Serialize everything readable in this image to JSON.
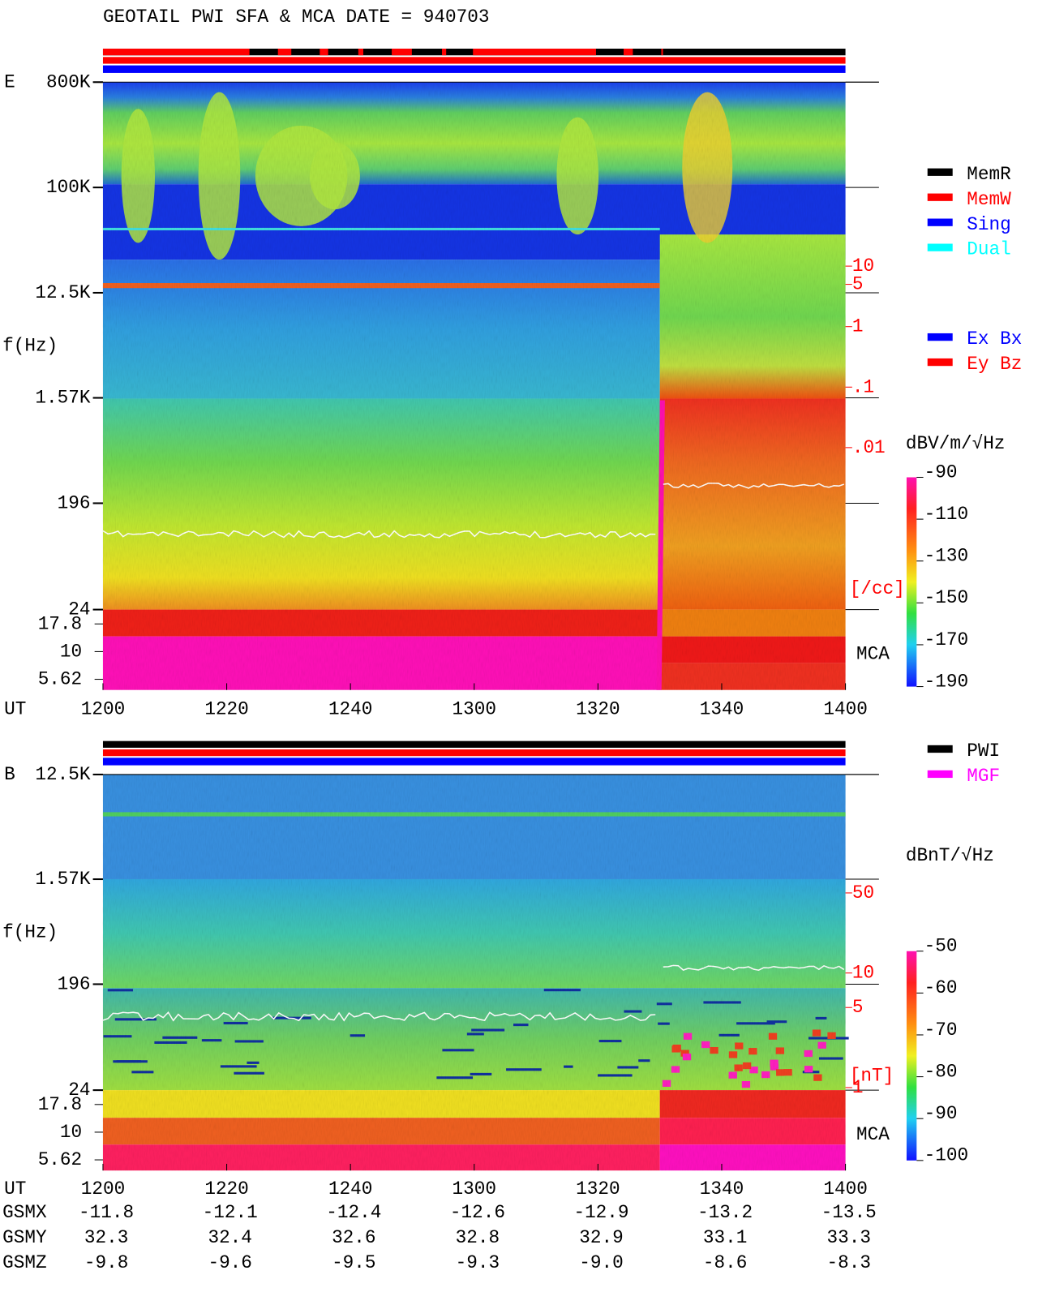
{
  "header": {
    "title": "GEOTAIL  PWI SFA & MCA   DATE = 940703"
  },
  "chart_data": [
    {
      "type": "spectrogram",
      "panel_label": "E",
      "x_label": "UT",
      "y_label": "f(Hz)",
      "yscale": "log",
      "xlim": [
        0,
        120
      ],
      "xticks": [
        {
          "value": 0,
          "label": "1200"
        },
        {
          "value": 20,
          "label": "1220"
        },
        {
          "value": 40,
          "label": "1240"
        },
        {
          "value": 60,
          "label": "1300"
        },
        {
          "value": 80,
          "label": "1320"
        },
        {
          "value": 100,
          "label": "1340"
        },
        {
          "value": 120,
          "label": "1400"
        }
      ],
      "ylim": [
        24,
        800000
      ],
      "yticks": [
        {
          "value": 800000,
          "label": "800K"
        },
        {
          "value": 100000,
          "label": "100K"
        },
        {
          "value": 12500,
          "label": "12.5K"
        },
        {
          "value": 1570,
          "label": "1.57K"
        },
        196,
        24
      ],
      "mca_label": "MCA",
      "mca_ylim": [
        4.5,
        24
      ],
      "mca_yticks": [
        17.8,
        10,
        5.62
      ],
      "y2scale": "log",
      "y2lim": [
        2.1e-05,
        11000
      ],
      "y2ticks": [
        10,
        5,
        1,
        {
          "value": 0.1,
          "label": ".1"
        },
        {
          "value": 0.01,
          "label": ".01"
        }
      ],
      "y2_label": "[/cc]",
      "y2_color": "#ff0000",
      "colorbar": {
        "label": "dBV/m/√Hz",
        "lim": [
          -190,
          -90
        ],
        "ticks": [
          -90,
          -110,
          -130,
          -150,
          -170,
          -190
        ]
      },
      "status_legend": [
        {
          "name": "MemR",
          "color": "#000000"
        },
        {
          "name": "MemW",
          "color": "#ff0000"
        },
        {
          "name": "Sing",
          "color": "#0000ff"
        },
        {
          "name": "Dual",
          "color": "#00ffff"
        }
      ],
      "component_legend": [
        {
          "name": "Ex Bx",
          "color": "#0000ff"
        },
        {
          "name": "Ey Bz",
          "color": "#ff0000"
        }
      ]
    },
    {
      "type": "spectrogram",
      "panel_label": "B",
      "x_label": "UT",
      "y_label": "f(Hz)",
      "yscale": "log",
      "xlim": [
        0,
        120
      ],
      "xticks": [
        {
          "value": 0,
          "label": "1200"
        },
        {
          "value": 20,
          "label": "1220"
        },
        {
          "value": 40,
          "label": "1240"
        },
        {
          "value": 60,
          "label": "1300"
        },
        {
          "value": 80,
          "label": "1320"
        },
        {
          "value": 100,
          "label": "1340"
        },
        {
          "value": 120,
          "label": "1400"
        }
      ],
      "ylim": [
        24,
        12500
      ],
      "yticks": [
        {
          "value": 12500,
          "label": "12.5K"
        },
        {
          "value": 1570,
          "label": "1.57K"
        },
        196,
        24
      ],
      "mca_label": "MCA",
      "mca_ylim": [
        4.5,
        24
      ],
      "mca_yticks": [
        17.8,
        10,
        5.62
      ],
      "y2scale": "log",
      "y2lim": [
        0.95,
        540
      ],
      "y2ticks": [
        50,
        10,
        5,
        1
      ],
      "y2_label": "[nT]",
      "y2_color": "#ff0000",
      "colorbar": {
        "label": "dBnT/√Hz",
        "lim": [
          -100,
          -50
        ],
        "ticks": [
          -50,
          -60,
          -70,
          -80,
          -90,
          -100
        ]
      },
      "status_legend": [
        {
          "name": "PWI",
          "color": "#000000"
        },
        {
          "name": "MGF",
          "color": "#ff00ff"
        }
      ]
    }
  ],
  "orbit": {
    "rows": [
      {
        "label": "GSMX",
        "values": [
          "-11.8",
          "-12.1",
          "-12.4",
          "-12.6",
          "-12.9",
          "-13.2",
          "-13.5"
        ]
      },
      {
        "label": "GSMY",
        "values": [
          "32.3",
          "32.4",
          "32.6",
          "32.8",
          "32.9",
          "33.1",
          "33.3"
        ]
      },
      {
        "label": "GSMZ",
        "values": [
          "-9.8",
          "-9.6",
          "-9.5",
          "-9.3",
          "-9.0",
          "-8.6",
          "-8.3"
        ]
      }
    ]
  }
}
